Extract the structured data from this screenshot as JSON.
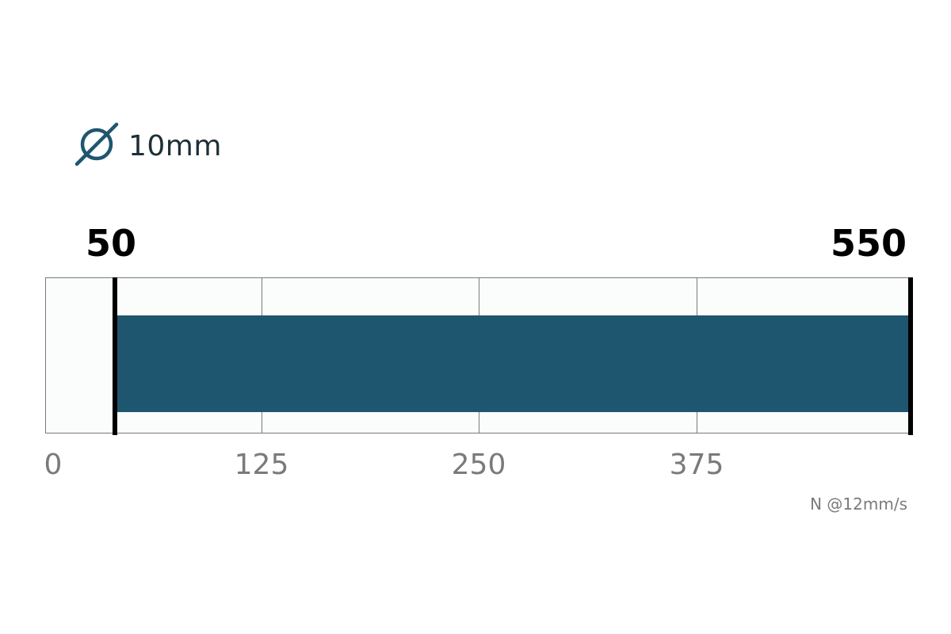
{
  "header": {
    "diameter_icon": "diameter-icon",
    "diameter_label": "10mm"
  },
  "chart_data": {
    "type": "range-bar",
    "range": {
      "min": 50,
      "max": 550
    },
    "min_label": "50",
    "max_label": "550",
    "ticks": [
      "0",
      "125",
      "250",
      "375"
    ],
    "unit_label": "N @12mm/s",
    "bar_color": "#1f566f",
    "marker_color": "#000000",
    "grid": true
  }
}
